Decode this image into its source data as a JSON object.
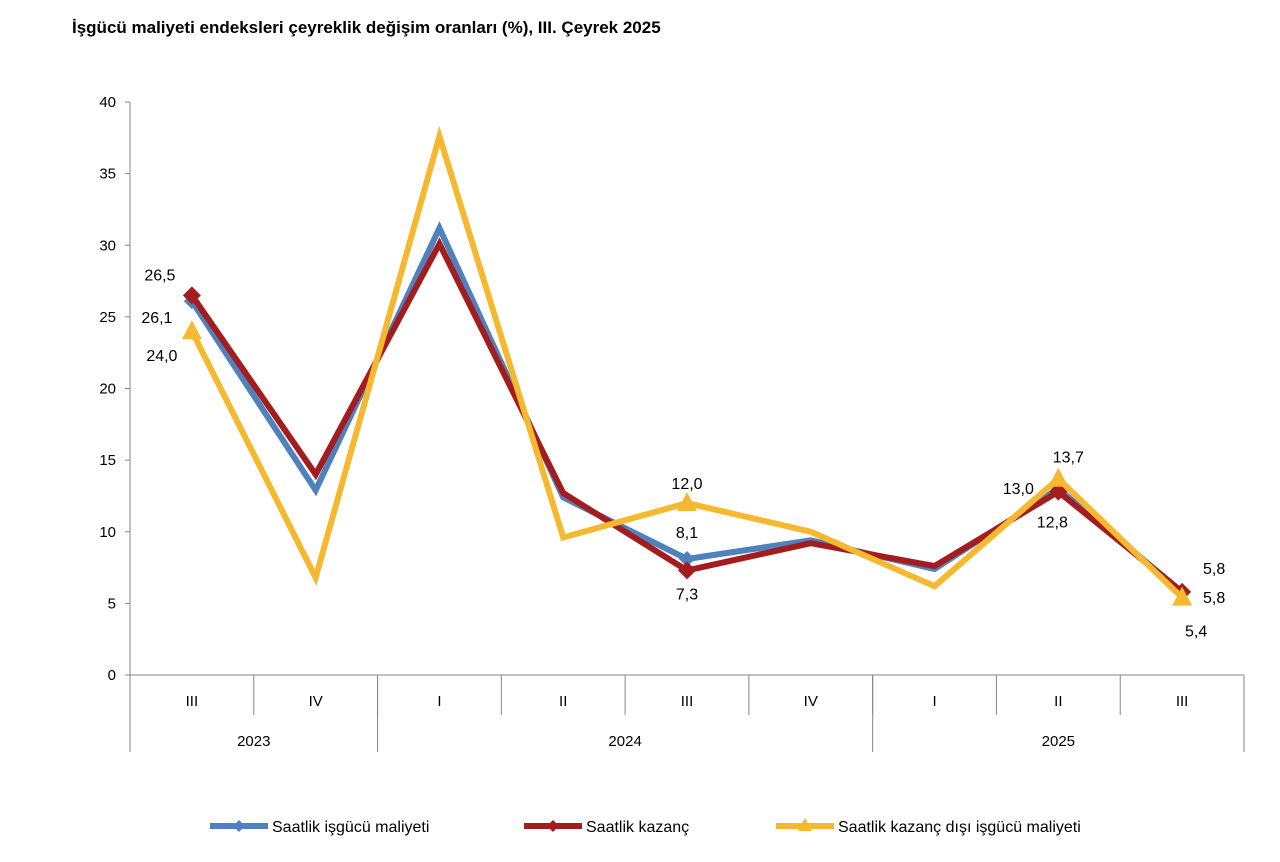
{
  "chart_data": {
    "type": "line",
    "title": "İşgücü maliyeti endeksleri çeyreklik değişim oranları (%), III. Çeyrek 2025",
    "xlabel": "",
    "ylabel": "",
    "ylim": [
      0,
      40
    ],
    "yticks": [
      "0",
      "5",
      "10",
      "15",
      "20",
      "25",
      "30",
      "35",
      "40"
    ],
    "grid": false,
    "legend_position": "bottom",
    "categories": [
      "III",
      "IV",
      "I",
      "II",
      "III",
      "IV",
      "I",
      "II",
      "III"
    ],
    "years": [
      {
        "label": "2023",
        "span": 2
      },
      {
        "label": "2024",
        "span": 4
      },
      {
        "label": "2025",
        "span": 3
      }
    ],
    "series": [
      {
        "name": "Saatlik işgücü maliyeti",
        "color": "#4F81BD",
        "marker": "diamond",
        "values": [
          26.1,
          12.9,
          31.2,
          12.4,
          8.1,
          9.4,
          7.4,
          13.0,
          5.8
        ],
        "labels": [
          "26,1",
          null,
          null,
          null,
          "8,1",
          null,
          null,
          "13,0",
          "5,8"
        ]
      },
      {
        "name": "Saatlik kazanç",
        "color": "#A31D1F",
        "marker": "square",
        "values": [
          26.5,
          14.0,
          30.1,
          12.7,
          7.3,
          9.2,
          7.6,
          12.8,
          5.8
        ],
        "labels": [
          "26,5",
          null,
          null,
          null,
          "7,3",
          null,
          null,
          "12,8",
          "5,8"
        ]
      },
      {
        "name": "Saatlik kazanç dışı işgücü maliyeti",
        "color": "#F5B82E",
        "marker": "triangle",
        "values": [
          24.0,
          6.8,
          37.6,
          9.6,
          12.0,
          10.0,
          6.2,
          13.7,
          5.4
        ],
        "labels": [
          "24,0",
          null,
          null,
          null,
          "12,0",
          null,
          null,
          "13,7",
          "5,4"
        ]
      }
    ]
  }
}
